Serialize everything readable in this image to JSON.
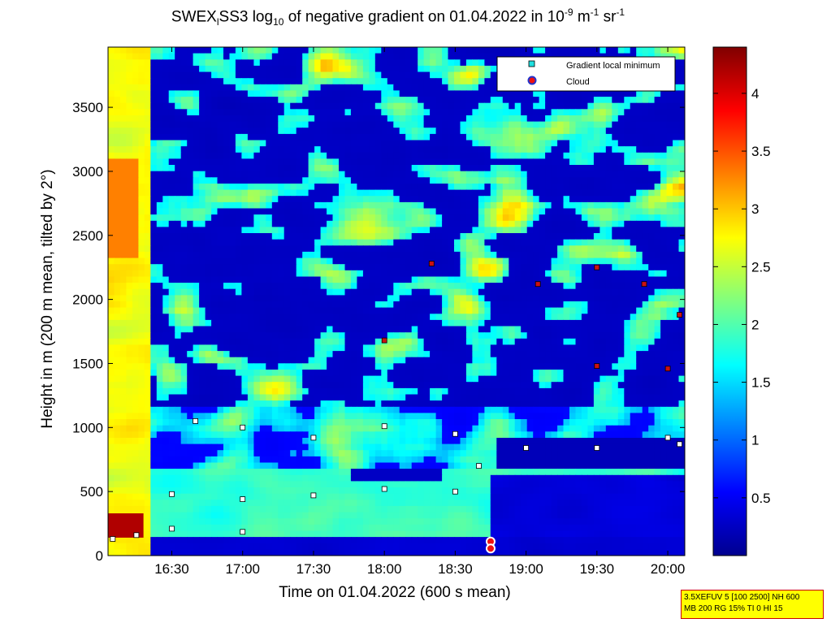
{
  "title": {
    "prefix": "SWEX",
    "sub1": "l",
    "middle": "SS3 log",
    "sub2": "10",
    "suffix": " of negative gradient on 01.04.2022 in 10",
    "sup1": "-9",
    "unit_m": " m",
    "sup2": "-1",
    "unit_sr": " sr",
    "sup3": "-1"
  },
  "legend": {
    "gradient_label": "Gradient local minimum",
    "cloud_label": "Cloud"
  },
  "info_box": {
    "line1": "3.5XEFUV 5 [100 2500] NH 600",
    "line2": "MB 200 RG 15% TI 0 HI 15"
  },
  "chart_data": {
    "type": "heatmap",
    "title": "SWEX_l SS3 log10 of negative gradient on 01.04.2022 in 10^-9 m^-1 sr^-1",
    "xlabel": "Time on 01.04.2022 (600 s mean)",
    "ylabel": "Height in m (200 m mean, tilted by 2°)",
    "x_ticks": [
      "16:30",
      "17:00",
      "17:30",
      "18:00",
      "18:30",
      "19:00",
      "19:30",
      "20:00"
    ],
    "x_tick_hours": [
      16.5,
      17.0,
      17.5,
      18.0,
      18.5,
      19.0,
      19.5,
      20.0
    ],
    "xlim_hours": [
      16.05,
      20.12
    ],
    "y_ticks": [
      0,
      500,
      1000,
      1500,
      2000,
      2500,
      3000,
      3500
    ],
    "ylim": [
      0,
      3970
    ],
    "colorbar": {
      "ticks": [
        0.5,
        1,
        1.5,
        2,
        2.5,
        3,
        3.5,
        4
      ],
      "range": [
        0,
        4.4
      ],
      "colormap": "jet"
    },
    "layer_tops": [
      {
        "time": "16:05",
        "height": 130
      },
      {
        "time": "16:15",
        "height": 160
      },
      {
        "time": "16:30",
        "height": 210
      },
      {
        "time": "17:00",
        "height": 185
      },
      {
        "time": "16:30",
        "height": 480
      },
      {
        "time": "17:00",
        "height": 440
      },
      {
        "time": "17:30",
        "height": 470
      },
      {
        "time": "18:00",
        "height": 520
      },
      {
        "time": "18:30",
        "height": 500
      },
      {
        "time": "18:40",
        "height": 700
      },
      {
        "time": "19:00",
        "height": 840
      },
      {
        "time": "19:30",
        "height": 840
      },
      {
        "time": "20:00",
        "height": 920
      },
      {
        "time": "20:05",
        "height": 870
      },
      {
        "time": "16:40",
        "height": 1050
      },
      {
        "time": "17:00",
        "height": 1000
      },
      {
        "time": "17:30",
        "height": 920
      },
      {
        "time": "18:00",
        "height": 1010
      },
      {
        "time": "18:30",
        "height": 950
      },
      {
        "time": "19:30",
        "height": 1480
      },
      {
        "time": "20:00",
        "height": 1460
      },
      {
        "time": "18:00",
        "height": 1680
      },
      {
        "time": "18:20",
        "height": 2280
      },
      {
        "time": "19:05",
        "height": 2120
      },
      {
        "time": "19:30",
        "height": 2250
      },
      {
        "time": "19:50",
        "height": 2120
      },
      {
        "time": "20:05",
        "height": 1880
      }
    ],
    "clouds": [
      {
        "time": "18:45",
        "height": 110
      },
      {
        "time": "18:45",
        "height": 55
      }
    ]
  }
}
